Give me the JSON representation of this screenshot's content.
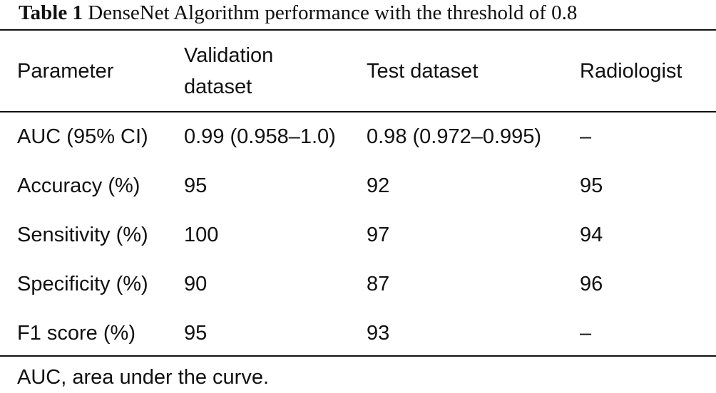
{
  "header": {
    "label": "Table 1",
    "title": "DenseNet Algorithm performance with the threshold of 0.8"
  },
  "table": {
    "columns": [
      "Parameter",
      "Validation dataset",
      "Test dataset",
      "Radiologist"
    ],
    "rows": [
      [
        "AUC (95% CI)",
        "0.99 (0.958–1.0)",
        "0.98 (0.972–0.995)",
        "–"
      ],
      [
        "Accuracy (%)",
        "95",
        "92",
        "95"
      ],
      [
        "Sensitivity (%)",
        "100",
        "97",
        "94"
      ],
      [
        "Specificity (%)",
        "90",
        "87",
        "96"
      ],
      [
        "F1 score (%)",
        "95",
        "93",
        "–"
      ]
    ]
  },
  "footnote": "AUC, area under the curve."
}
